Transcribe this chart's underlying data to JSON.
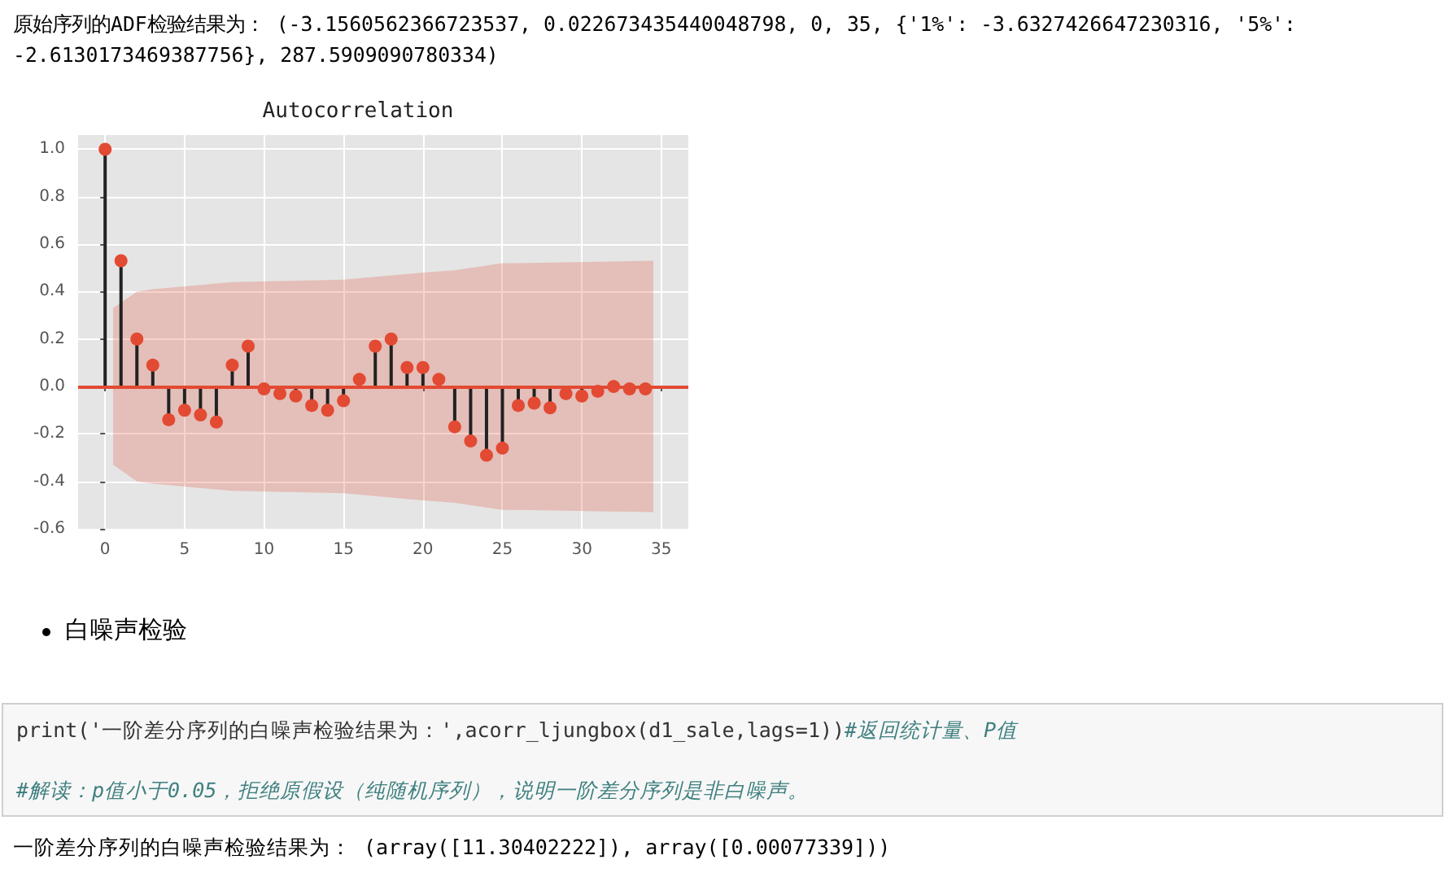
{
  "chart_data": {
    "type": "lollipop",
    "title": "Autocorrelation",
    "x": [
      0,
      1,
      2,
      3,
      4,
      5,
      6,
      7,
      8,
      9,
      10,
      11,
      12,
      13,
      14,
      15,
      16,
      17,
      18,
      19,
      20,
      21,
      22,
      23,
      24,
      25,
      26,
      27,
      28,
      29,
      30,
      31,
      32,
      33,
      34
    ],
    "series": [
      {
        "color": "#e24a33",
        "values": [
          1.0,
          0.53,
          0.2,
          0.09,
          -0.14,
          -0.1,
          -0.12,
          -0.15,
          0.09,
          0.17,
          -0.01,
          -0.03,
          -0.04,
          -0.08,
          -0.1,
          -0.06,
          0.03,
          0.17,
          0.2,
          0.08,
          0.08,
          0.03,
          -0.17,
          -0.23,
          -0.29,
          -0.26,
          -0.08,
          -0.07,
          -0.09,
          -0.03,
          -0.04,
          -0.02,
          0.0,
          -0.01,
          -0.01
        ]
      },
      {
        "type": "area",
        "color": "#e24a33",
        "x": [
          0.5,
          2,
          3,
          8,
          15,
          20,
          22,
          25,
          26,
          34.5
        ],
        "values": [
          null,
          null,
          null,
          null,
          null,
          null,
          null,
          null,
          null,
          null
        ],
        "lower": [
          -0.33,
          -0.4,
          -0.41,
          -0.44,
          -0.45,
          -0.48,
          -0.49,
          -0.52,
          -0.52,
          -0.53
        ],
        "upper": [
          0.33,
          0.4,
          0.41,
          0.44,
          0.45,
          0.48,
          0.49,
          0.52,
          0.52,
          0.53
        ]
      }
    ],
    "ref_lines": [
      {
        "axis": "y",
        "value": 0,
        "color": "#e24a33"
      }
    ],
    "xlim": [
      -1.7,
      36.7
    ],
    "xticks": [
      0,
      5,
      10,
      15,
      20,
      25,
      30,
      35
    ],
    "ylim": [
      -0.6,
      1.06
    ],
    "yticks": [
      -0.6,
      -0.4,
      -0.2,
      {
        "value": 0,
        "label": "0.0"
      },
      0.2,
      0.4,
      0.6,
      0.8,
      {
        "value": 1,
        "label": "1.0"
      }
    ],
    "grid": true,
    "marker": "circle",
    "annotations": [
      "原始序列的ADF检验结果为： (-3.1560562366723537, 0.022673435440048798, 0, 35, {'1%': -3.6327426647230316, '5%': -2.6130173469387756}, 287.5909090780334)",
      "白噪声检验",
      "print('一阶差分序列的白噪声检验结果为：',acorr_ljungbox(d1_sale,lags=1))",
      "#返回统计量、P值",
      "#解读：p值小于0.05，拒绝原假设（纯随机序列），说明一阶差分序列是非白噪声。",
      "一阶差分序列的白噪声检验结果为： (array([11.30402222]), array([0.00077339]))"
    ]
  }
}
